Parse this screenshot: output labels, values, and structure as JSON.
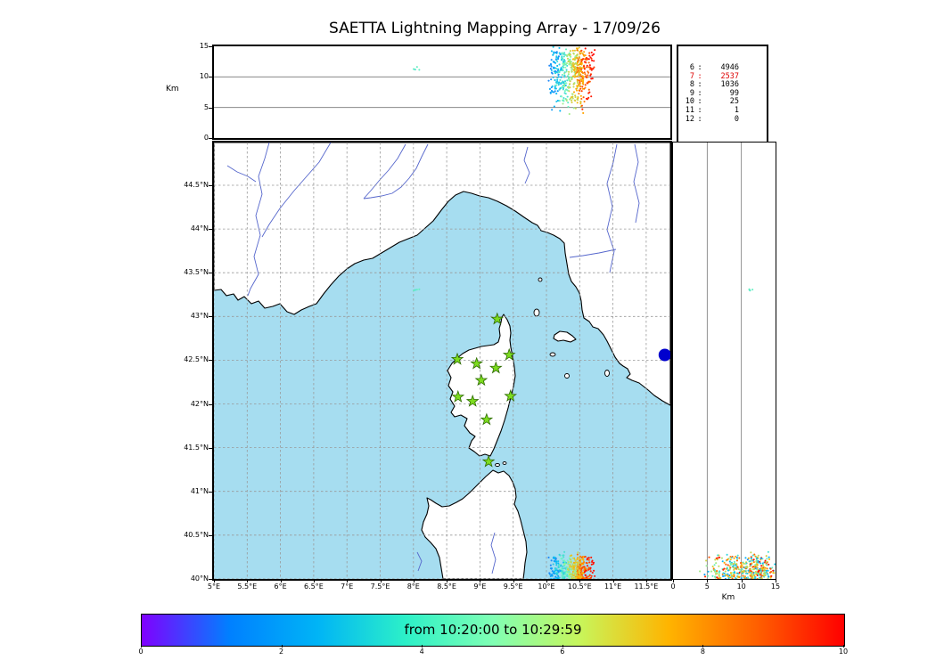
{
  "title": "SAETTA Lightning Mapping Array - 17/09/26",
  "top_panel": {
    "ylabel": "Km",
    "yticks": [
      "15",
      "10",
      "5",
      "0"
    ]
  },
  "stats_panel": {
    "rows": [
      {
        "level": "6",
        "count": "4946",
        "color": "#000000"
      },
      {
        "level": "7",
        "count": "2537",
        "color": "#dd0000"
      },
      {
        "level": "8",
        "count": "1036",
        "color": "#000000"
      },
      {
        "level": "9",
        "count": "99",
        "color": "#000000"
      },
      {
        "level": "10",
        "count": "25",
        "color": "#000000"
      },
      {
        "level": "11",
        "count": "1",
        "color": "#000000"
      },
      {
        "level": "12",
        "count": "0",
        "color": "#000000"
      }
    ]
  },
  "map_panel": {
    "lat_ticks": [
      "44.5°N",
      "44°N",
      "43.5°N",
      "43°N",
      "42.5°N",
      "42°N",
      "41.5°N",
      "41°N",
      "40.5°N",
      "40°N"
    ],
    "lon_ticks": [
      "5°E",
      "5.5°E",
      "6°E",
      "6.5°E",
      "7°E",
      "7.5°E",
      "8°E",
      "8.5°E",
      "9°E",
      "9.5°E",
      "10°E",
      "10.5°E",
      "11°E",
      "11.5°E"
    ],
    "sea_color": "#a6ddf0",
    "land_color": "#ffffff",
    "river_color": "#5566cc",
    "station_color": "#7ddc1f",
    "sensor_dot_color": "#0000cd"
  },
  "right_panel": {
    "xticks": [
      "0",
      "5",
      "10",
      "15"
    ],
    "xlabel": "Km"
  },
  "colorbar": {
    "label": "from 10:20:00 to 10:29:59",
    "ticks": [
      "0",
      "2",
      "4",
      "6",
      "8",
      "10"
    ],
    "colors": [
      "#8000ff",
      "#0080ff",
      "#00b4f6",
      "#2cf0c8",
      "#80ffb4",
      "#c8f55a",
      "#ffb400",
      "#ff6000",
      "#ff0000"
    ]
  },
  "chart_data": {
    "type": "scatter",
    "title": "SAETTA Lightning Mapping Array - 17/09/26",
    "panels": [
      {
        "name": "alt-vs-lon",
        "ylabel": "Km",
        "ylim_km": [
          0,
          15
        ],
        "xlim_lon_deg_e": [
          5,
          11.86
        ],
        "grid": "horizontal lines at 5 and 10 km"
      },
      {
        "name": "plan-view-map",
        "xlim_lon_deg_e": [
          5,
          11.86
        ],
        "ylim_lat_deg_n": [
          40,
          44.99
        ],
        "grid": "0.5 deg dashed"
      },
      {
        "name": "lat-vs-alt",
        "xlabel": "Km",
        "xlim_km": [
          0,
          15
        ],
        "ylim_lat_deg_n": [
          40,
          44.99
        ],
        "grid": "vertical lines at 5 and 10 km"
      }
    ],
    "source_counts_by_level": {
      "6": 4946,
      "7": 2537,
      "8": 1036,
      "9": 99,
      "10": 25,
      "11": 1,
      "12": 0
    },
    "time_window": {
      "from": "10:20:00",
      "to": "10:29:59",
      "colorbar_axis_minutes": [
        0,
        10
      ]
    },
    "lma_stations_lon_lat": [
      [
        9.26,
        42.97
      ],
      [
        8.66,
        42.51
      ],
      [
        8.95,
        42.46
      ],
      [
        9.24,
        42.41
      ],
      [
        9.44,
        42.56
      ],
      [
        9.02,
        42.27
      ],
      [
        8.67,
        42.08
      ],
      [
        8.89,
        42.03
      ],
      [
        9.46,
        42.09
      ],
      [
        9.1,
        41.82
      ],
      [
        9.13,
        41.34
      ]
    ],
    "sensor_dot_lon_lat": [
      11.78,
      42.56
    ],
    "storm_cluster": {
      "lon_range": [
        10.02,
        10.72
      ],
      "lat_range": [
        39.85,
        40.32
      ],
      "alt_km_range": [
        3.5,
        15
      ],
      "time_frac_range": [
        0.18,
        1.0
      ],
      "n_points_rendered": 520,
      "seed": 7
    },
    "minor_cluster": {
      "lon_range": [
        8.0,
        8.1
      ],
      "lat_range": [
        43.28,
        43.34
      ],
      "alt_km_range": [
        10.0,
        11.8
      ],
      "time_frac_range": [
        0.4,
        0.46
      ],
      "n_points_rendered": 4,
      "seed": 3
    }
  }
}
